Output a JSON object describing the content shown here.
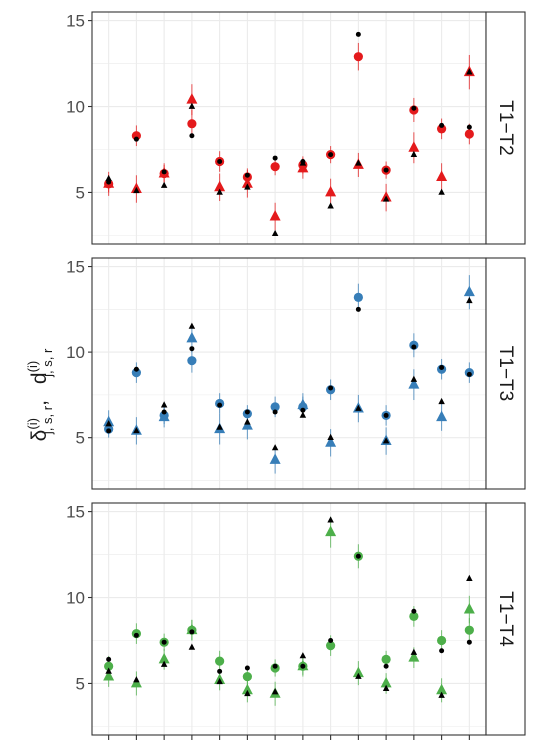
{
  "chart_data": {
    "type": "scatter",
    "ylabel": {
      "delta": "δ",
      "delta_sup": "(i)",
      "delta_sub": "j, s, r",
      "sep": ",",
      "d": "d",
      "d_sup": "(i)",
      "d_sub": "j, s, r"
    },
    "ylim": [
      2,
      15.5
    ],
    "yticks": [
      5,
      10,
      15
    ],
    "x": [
      1,
      2,
      3,
      4,
      5,
      6,
      7,
      8,
      9,
      10,
      11,
      12,
      13,
      14
    ],
    "grid": true,
    "panels": [
      {
        "strip": "T1−T2",
        "color": "#E41A1C",
        "colored_circle": {
          "y": [
            5.5,
            8.3,
            6.1,
            9.0,
            6.8,
            5.9,
            6.5,
            6.6,
            7.2,
            12.9,
            6.3,
            9.8,
            8.7,
            8.4
          ],
          "lo": [
            5.0,
            7.7,
            5.6,
            8.2,
            6.2,
            5.4,
            6.0,
            6.1,
            6.7,
            12.1,
            5.8,
            9.1,
            8.1,
            7.8
          ],
          "hi": [
            6.0,
            8.9,
            6.6,
            9.8,
            7.4,
            6.4,
            7.0,
            7.1,
            7.7,
            13.7,
            6.8,
            10.5,
            9.3,
            9.0
          ]
        },
        "colored_triangle": {
          "y": [
            5.5,
            5.2,
            6.1,
            10.4,
            5.3,
            5.5,
            3.6,
            6.4,
            5.0,
            6.6,
            4.7,
            7.6,
            5.9,
            12.0
          ],
          "lo": [
            4.8,
            4.4,
            5.5,
            9.5,
            4.5,
            4.7,
            2.8,
            5.8,
            4.2,
            5.9,
            3.9,
            6.7,
            5.1,
            11.0
          ],
          "hi": [
            6.2,
            6.0,
            6.7,
            11.3,
            6.1,
            6.3,
            4.4,
            7.0,
            5.8,
            7.3,
            5.5,
            8.5,
            6.7,
            13.0
          ]
        },
        "black_circle": {
          "y": [
            5.6,
            8.1,
            6.2,
            8.3,
            6.8,
            6.0,
            7.0,
            6.8,
            7.2,
            14.2,
            6.3,
            9.9,
            8.9,
            8.8
          ]
        },
        "black_triangle": {
          "y": [
            5.8,
            5.1,
            5.4,
            10.0,
            5.0,
            5.3,
            2.6,
            6.7,
            4.2,
            6.7,
            4.6,
            7.2,
            5.0,
            12.0
          ]
        }
      },
      {
        "strip": "T1−T3",
        "color": "#377EB8",
        "colored_circle": {
          "y": [
            5.5,
            8.8,
            6.3,
            9.5,
            7.0,
            6.4,
            6.8,
            6.8,
            7.8,
            13.2,
            6.3,
            10.4,
            9.0,
            8.8
          ],
          "lo": [
            5.0,
            8.2,
            5.8,
            8.8,
            6.4,
            5.9,
            6.2,
            6.2,
            7.2,
            12.4,
            5.7,
            9.7,
            8.4,
            8.2
          ],
          "hi": [
            6.0,
            9.4,
            6.8,
            10.2,
            7.6,
            6.9,
            7.4,
            7.4,
            8.4,
            14.0,
            6.9,
            11.1,
            9.6,
            9.4
          ]
        },
        "colored_triangle": {
          "y": [
            5.9,
            5.4,
            6.2,
            10.8,
            5.5,
            5.7,
            3.7,
            6.9,
            4.7,
            6.7,
            4.8,
            8.1,
            6.2,
            13.5
          ],
          "lo": [
            5.2,
            4.6,
            5.6,
            10.0,
            4.6,
            4.9,
            2.9,
            6.2,
            3.9,
            5.9,
            4.0,
            7.2,
            5.4,
            12.5
          ],
          "hi": [
            6.6,
            6.2,
            6.8,
            11.6,
            6.4,
            6.5,
            4.5,
            7.6,
            5.5,
            7.5,
            5.6,
            9.0,
            7.0,
            14.5
          ]
        },
        "black_circle": {
          "y": [
            5.4,
            9.0,
            6.5,
            10.2,
            6.9,
            6.5,
            6.5,
            6.6,
            7.9,
            12.5,
            6.3,
            10.3,
            9.1,
            8.7
          ]
        },
        "black_triangle": {
          "y": [
            5.8,
            5.4,
            6.9,
            11.5,
            5.6,
            5.9,
            4.4,
            6.3,
            5.0,
            6.7,
            4.8,
            8.4,
            7.1,
            13.0
          ]
        }
      },
      {
        "strip": "T1−T4",
        "color": "#4DAF4A",
        "colored_circle": {
          "y": [
            6.0,
            7.9,
            7.4,
            8.1,
            6.3,
            5.4,
            5.9,
            6.0,
            7.2,
            12.4,
            6.4,
            8.9,
            7.5,
            8.1
          ],
          "lo": [
            5.4,
            7.3,
            6.9,
            7.5,
            5.7,
            4.9,
            5.4,
            5.5,
            6.6,
            11.7,
            5.9,
            8.3,
            6.9,
            7.4
          ],
          "hi": [
            6.6,
            8.5,
            7.9,
            8.7,
            6.9,
            5.9,
            6.4,
            6.5,
            7.8,
            13.1,
            6.9,
            9.5,
            8.1,
            8.8
          ]
        },
        "colored_triangle": {
          "y": [
            5.4,
            5.0,
            6.4,
            8.1,
            5.2,
            4.6,
            4.4,
            6.0,
            13.8,
            5.6,
            5.0,
            6.5,
            4.6,
            9.3
          ],
          "lo": [
            4.8,
            4.3,
            5.8,
            7.5,
            4.6,
            3.9,
            3.7,
            5.4,
            12.9,
            4.9,
            4.4,
            5.9,
            3.9,
            8.5
          ],
          "hi": [
            6.0,
            5.7,
            7.0,
            8.7,
            5.8,
            5.3,
            5.1,
            6.6,
            14.7,
            6.3,
            5.6,
            7.1,
            5.3,
            10.1
          ]
        },
        "black_circle": {
          "y": [
            6.4,
            7.8,
            7.4,
            8.0,
            5.7,
            5.9,
            6.0,
            6.0,
            7.5,
            12.4,
            6.0,
            9.2,
            6.9,
            7.4
          ]
        },
        "black_triangle": {
          "y": [
            5.7,
            5.2,
            6.1,
            7.1,
            5.1,
            4.4,
            4.5,
            6.6,
            14.5,
            5.4,
            4.7,
            6.8,
            4.3,
            11.1
          ]
        }
      }
    ]
  }
}
